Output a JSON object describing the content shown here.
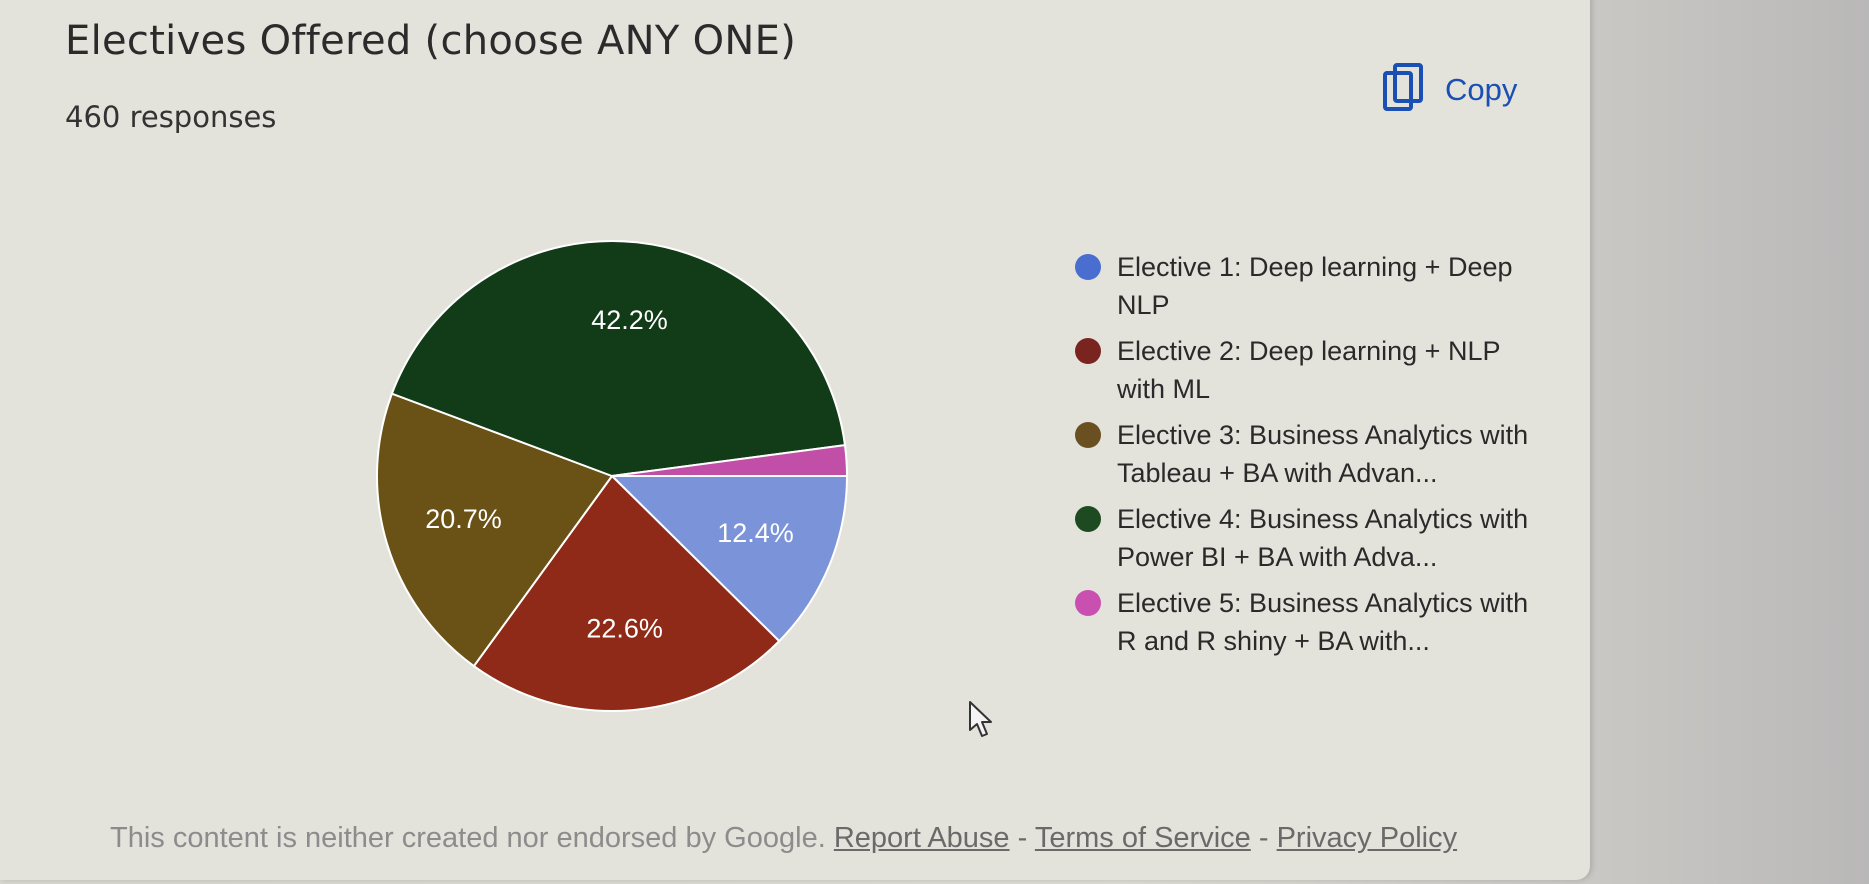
{
  "header": {
    "title": "Electives Offered (choose ANY ONE)",
    "responses": "460 responses",
    "copy_label": "Copy",
    "copy_icon": "copy-icon"
  },
  "chart_data": {
    "type": "pie",
    "slices": [
      {
        "label": "Elective 1: Deep learning + Deep NLP",
        "value": 12.4,
        "color": "#7b93d9",
        "legend_color": "#4a6ed0",
        "data_label": "12.4%"
      },
      {
        "label": "Elective 2: Deep learning + NLP with ML",
        "value": 22.6,
        "color": "#8e2a17",
        "legend_color": "#7a2420",
        "data_label": "22.6%"
      },
      {
        "label": "Elective 3: Business Analytics with Tableau + BA with Advan...",
        "value": 20.7,
        "color": "#6a5216",
        "legend_color": "#6a5020",
        "data_label": "20.7%"
      },
      {
        "label": "Elective 4: Business Analytics with Power BI + BA with Adva...",
        "value": 42.2,
        "color": "#123b18",
        "legend_color": "#1e4a22",
        "data_label": "42.2%"
      },
      {
        "label": "Elective 5: Business Analytics with R and R shiny + BA with...",
        "value": 2.1,
        "color": "#c24fa7",
        "legend_color": "#c94fb0",
        "data_label": ""
      }
    ],
    "legend_position": "right"
  },
  "footer": {
    "disclaimer": "This content is neither created nor endorsed by Google.",
    "report_abuse": "Report Abuse",
    "separator": "-",
    "terms": "Terms of Service",
    "privacy": "Privacy Policy"
  }
}
